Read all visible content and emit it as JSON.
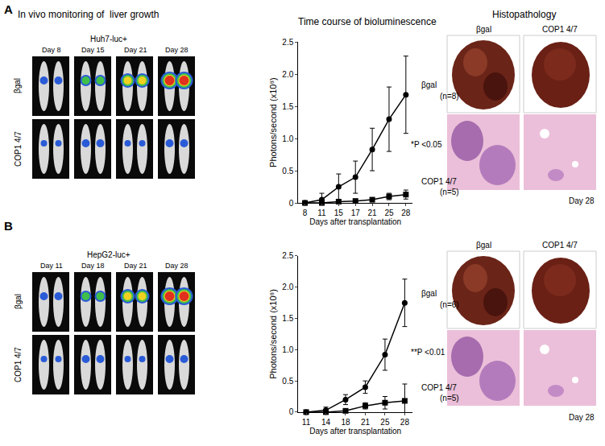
{
  "chart_data": [
    {
      "type": "line",
      "title": "Time course of bioluminescence",
      "x_label": "Days after transplantation",
      "y_label": "Photons/second (x10⁸)",
      "categories": [
        "8",
        "11",
        "15",
        "17",
        "21",
        "25",
        "28"
      ],
      "series": [
        {
          "name": "βgal",
          "note": "(n=8)",
          "color": "#000000",
          "marker": "circle",
          "line_style": "solid",
          "values": [
            0,
            0.05,
            0.25,
            0.4,
            0.83,
            1.3,
            1.68
          ],
          "errors": [
            0.02,
            0.1,
            0.2,
            0.25,
            0.33,
            0.5,
            0.6
          ]
        },
        {
          "name": "COP1 4/7",
          "note": "(n=5)",
          "color": "#000000",
          "marker": "square",
          "line_style": "solid",
          "values": [
            0,
            0,
            0.02,
            0.03,
            0.05,
            0.1,
            0.13
          ],
          "errors": [
            0,
            0.01,
            0.02,
            0.02,
            0.03,
            0.05,
            0.07
          ]
        }
      ],
      "annotations": [
        "*P <0.05"
      ],
      "ylim": [
        0,
        2.5
      ],
      "yticks": [
        0,
        0.5,
        {
          "value": 1,
          "label": "1.0"
        },
        1.5,
        {
          "value": 2,
          "label": "2.0"
        },
        2.5
      ],
      "grid": false
    },
    {
      "type": "line",
      "x_label": "Days after transplantation",
      "y_label": "Photons/second (x10⁸)",
      "categories": [
        "11",
        "14",
        "18",
        "21",
        "25",
        "28"
      ],
      "series": [
        {
          "name": "βgal",
          "note": "(n=6)",
          "color": "#000000",
          "marker": "circle",
          "line_style": "solid",
          "values": [
            0,
            0.03,
            0.2,
            0.4,
            0.92,
            1.75
          ],
          "errors": [
            0.02,
            0.05,
            0.08,
            0.1,
            0.25,
            0.38
          ]
        },
        {
          "name": "COP1 4/7",
          "note": "(n=5)",
          "color": "#000000",
          "marker": "square",
          "line_style": "solid",
          "values": [
            0,
            0,
            0.02,
            0.1,
            0.15,
            0.18
          ],
          "errors": [
            0,
            0.01,
            0.02,
            0.05,
            0.1,
            0.27
          ]
        }
      ],
      "annotations": [
        "**P <0.01"
      ],
      "ylim": [
        0,
        2.5
      ],
      "yticks": [
        0,
        0.5,
        {
          "value": 1,
          "label": "1.0"
        },
        1.5,
        {
          "value": 2,
          "label": "2.0"
        },
        2.5
      ],
      "grid": false
    }
  ],
  "panels": [
    {
      "label": "A",
      "imaging_title": "In vivo monitoring of  liver growth",
      "cell_line": "Huh7-luc+",
      "days": [
        "Day 8",
        "Day 15",
        "Day 21",
        "Day 28"
      ],
      "groups": [
        "βgal",
        "COP1 4/7"
      ],
      "histology_title": "Histopathology",
      "histology_groups": [
        "βgal",
        "COP1 4/7"
      ],
      "histology_day": "Day 28"
    },
    {
      "label": "B",
      "cell_line": "HepG2-luc+",
      "days": [
        "Day 11",
        "Day 18",
        "Day 21",
        "Day 28"
      ],
      "groups": [
        "βgal",
        "COP1 4/7"
      ],
      "histology_groups": [
        "βgal",
        "COP1 4/7"
      ],
      "histology_day": "Day 28"
    }
  ]
}
